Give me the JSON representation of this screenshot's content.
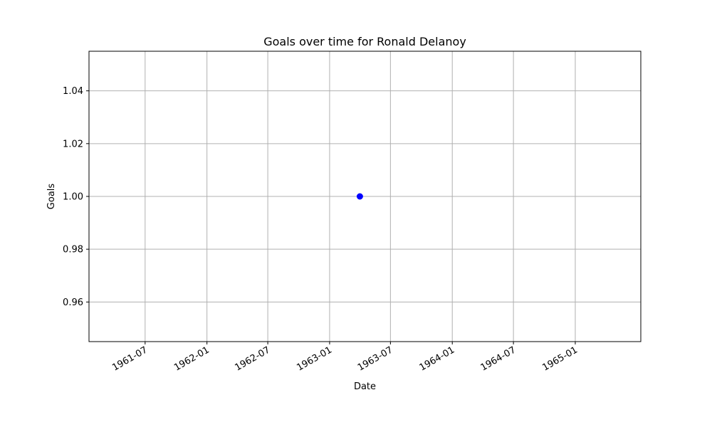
{
  "chart_data": {
    "type": "scatter",
    "title": "Goals over time for Ronald Delanoy",
    "xlabel": "Date",
    "ylabel": "Goals",
    "x_ticks": [
      "1961-07",
      "1962-01",
      "1962-07",
      "1963-01",
      "1963-07",
      "1964-01",
      "1964-07",
      "1965-01"
    ],
    "y_ticks": [
      "0.96",
      "0.98",
      "1.00",
      "1.02",
      "1.04"
    ],
    "xlim": [
      "1961-01-15",
      "1965-07-15"
    ],
    "ylim": [
      0.945,
      1.055
    ],
    "grid": true,
    "series": [
      {
        "points": [
          {
            "x": "1963-04-01",
            "y": 1.0
          }
        ]
      }
    ],
    "colors": {
      "marker": "#0000ff",
      "grid": "#b0b0b0",
      "axes": "#000000"
    }
  }
}
